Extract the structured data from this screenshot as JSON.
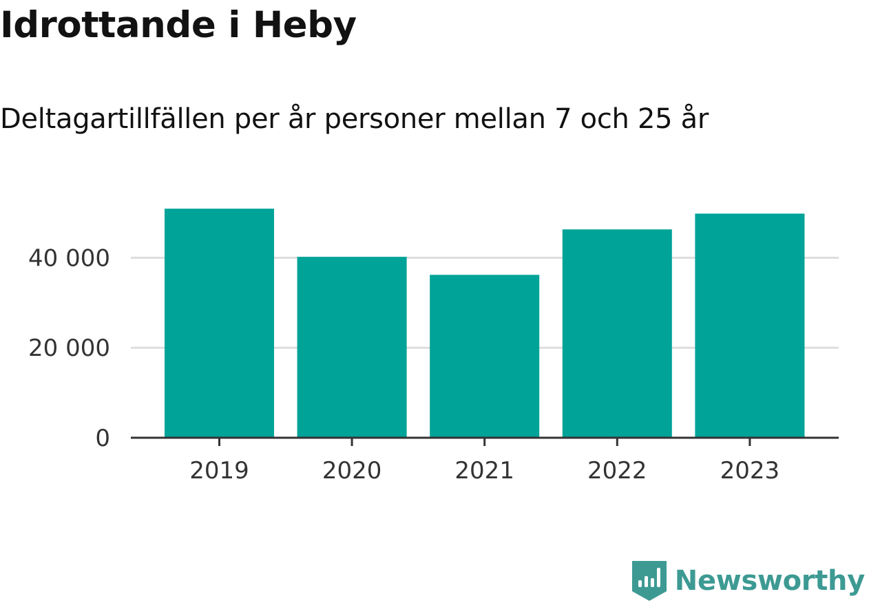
{
  "header": {
    "title": "Idrottande i Heby",
    "subtitle": "Deltagartillfällen per år personer mellan 7 och 25 år"
  },
  "chart_data": {
    "type": "bar",
    "categories": [
      "2019",
      "2020",
      "2021",
      "2022",
      "2023"
    ],
    "values": [
      50900,
      40200,
      36200,
      46300,
      49800
    ],
    "ylim": [
      0,
      52000
    ],
    "yticks": [
      0,
      20000,
      40000
    ],
    "ytick_labels": [
      "0",
      "20 000",
      "40 000"
    ],
    "grid": true,
    "bar_color": "#00a398",
    "grid_color": "#dddddd",
    "axis_color": "#333333"
  },
  "brand": {
    "name": "Newsworthy",
    "icon": "newsworthy-logo-icon",
    "color": "#3d9a93"
  }
}
